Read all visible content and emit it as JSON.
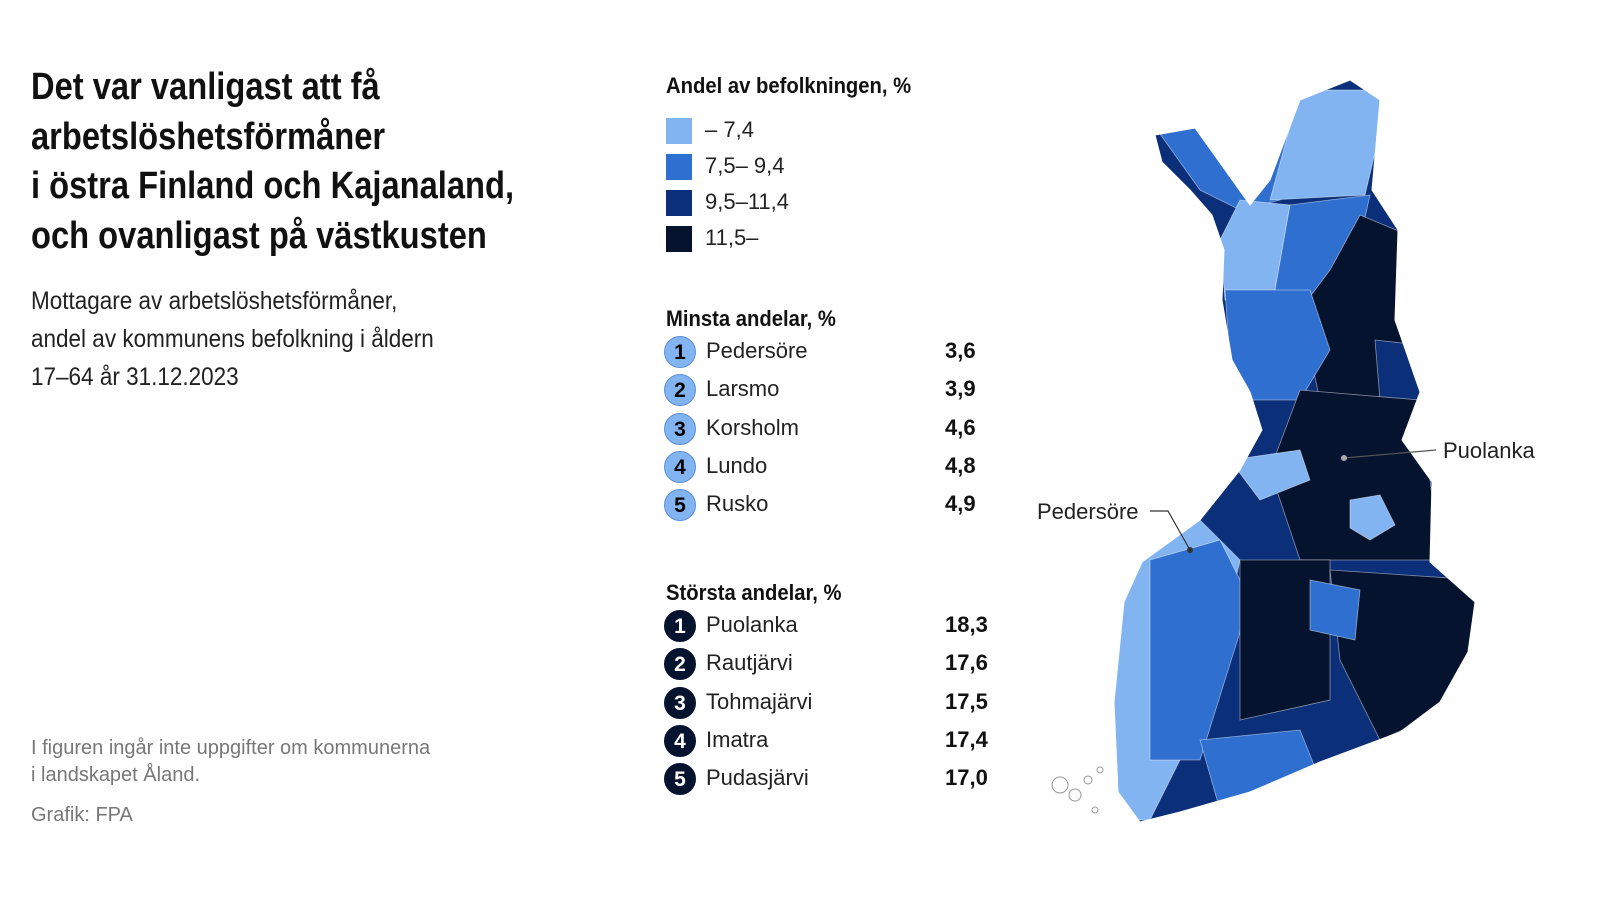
{
  "header": {
    "title": [
      "Det var vanligast att få",
      "arbetslöshetsförmåner",
      "i östra Finland och Kajanaland,",
      "och ovanligast på västkusten"
    ],
    "subtitle": [
      "Mottagare av arbetslöshetsförmåner,",
      "andel av kommunens befolkning i åldern",
      "17–64 år 31.12.2023"
    ]
  },
  "legend": {
    "title": "Andel av befolkningen, %",
    "items": [
      {
        "label": "– 7,4",
        "color": "#82b4f2"
      },
      {
        "label": "7,5– 9,4",
        "color": "#2f6fcf"
      },
      {
        "label": "9,5–11,4",
        "color": "#0c2f7a"
      },
      {
        "label": "11,5–",
        "color": "#06132f"
      }
    ]
  },
  "smallest": {
    "title": "Minsta andelar, %",
    "color": "#82b4f2",
    "rows": [
      {
        "rank": "1",
        "name": "Pedersöre",
        "value": "3,6"
      },
      {
        "rank": "2",
        "name": "Larsmo",
        "value": "3,9"
      },
      {
        "rank": "3",
        "name": "Korsholm",
        "value": "4,6"
      },
      {
        "rank": "4",
        "name": "Lundo",
        "value": "4,8"
      },
      {
        "rank": "5",
        "name": "Rusko",
        "value": "4,9"
      }
    ]
  },
  "largest": {
    "title": "Största andelar, %",
    "color": "#06132f",
    "rows": [
      {
        "rank": "1",
        "name": "Puolanka",
        "value": "18,3"
      },
      {
        "rank": "2",
        "name": "Rautjärvi",
        "value": "17,6"
      },
      {
        "rank": "3",
        "name": "Tohmajärvi",
        "value": "17,5"
      },
      {
        "rank": "4",
        "name": "Imatra",
        "value": "17,4"
      },
      {
        "rank": "5",
        "name": "Pudasjärvi",
        "value": "17,0"
      }
    ]
  },
  "map": {
    "labels": [
      "Puolanka",
      "Pedersöre"
    ]
  },
  "footer": {
    "note": [
      "I figuren ingår inte uppgifter om kommunerna",
      "i landskapet Åland."
    ],
    "credit": "Grafik: FPA"
  }
}
